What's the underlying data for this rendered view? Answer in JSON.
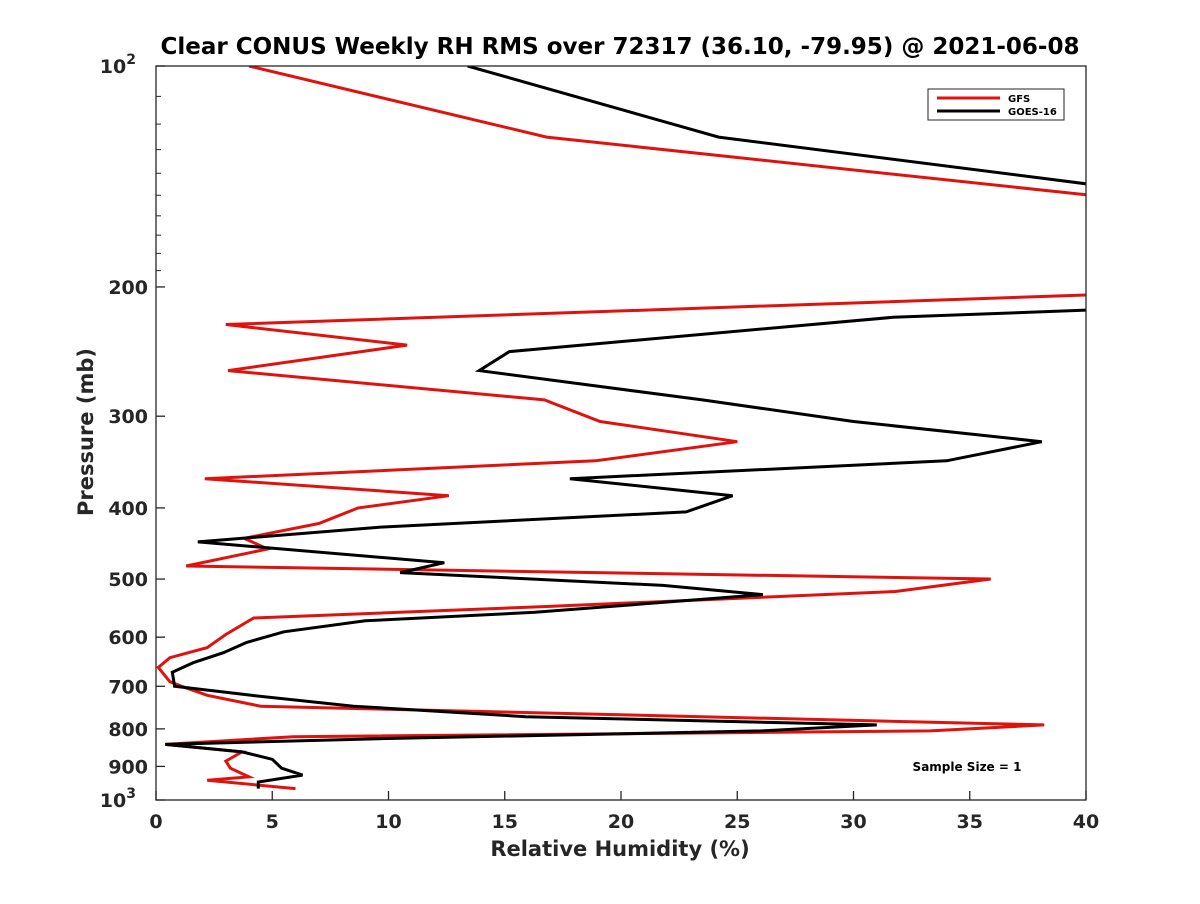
{
  "chart_data": {
    "type": "line",
    "title": "Clear CONUS Weekly RH RMS over 72317 (36.10, -79.95) @ 2021-06-08",
    "xlabel": "Relative Humidity (%)",
    "ylabel": "Pressure (mb)",
    "xlim": [
      0,
      40
    ],
    "ylim": [
      100,
      1000
    ],
    "y_scale": "log",
    "y_reversed": true,
    "x_ticks": [
      0,
      5,
      10,
      15,
      20,
      25,
      30,
      35,
      40
    ],
    "y_ticks": [
      {
        "value": 100,
        "label": "10",
        "exp": "2"
      },
      {
        "value": 200,
        "label": "200"
      },
      {
        "value": 300,
        "label": "300"
      },
      {
        "value": 400,
        "label": "400"
      },
      {
        "value": 500,
        "label": "500"
      },
      {
        "value": 600,
        "label": "600"
      },
      {
        "value": 700,
        "label": "700"
      },
      {
        "value": 800,
        "label": "800"
      },
      {
        "value": 900,
        "label": "900"
      },
      {
        "value": 1000,
        "label": "10",
        "exp": "3"
      }
    ],
    "grid": false,
    "legend_position": "top-right",
    "series": [
      {
        "name": "GFS",
        "color": "#e0120e",
        "points": [
          [
            4.0,
            100
          ],
          [
            16.8,
            125
          ],
          [
            40.2,
            150
          ],
          [
            40.2,
            205
          ],
          [
            3.0,
            225
          ],
          [
            10.8,
            240
          ],
          [
            3.1,
            260
          ],
          [
            16.7,
            285
          ],
          [
            19.1,
            305
          ],
          [
            25.0,
            325
          ],
          [
            18.9,
            345
          ],
          [
            2.1,
            365
          ],
          [
            12.6,
            385
          ],
          [
            8.7,
            400
          ],
          [
            7.0,
            420
          ],
          [
            3.8,
            440
          ],
          [
            4.8,
            455
          ],
          [
            1.3,
            480
          ],
          [
            35.9,
            500
          ],
          [
            31.8,
            520
          ],
          [
            16.8,
            545
          ],
          [
            4.2,
            565
          ],
          [
            3.0,
            595
          ],
          [
            2.2,
            620
          ],
          [
            0.6,
            640
          ],
          [
            0.1,
            660
          ],
          [
            0.6,
            690
          ],
          [
            1.1,
            700
          ],
          [
            2.2,
            720
          ],
          [
            4.5,
            745
          ],
          [
            38.2,
            790
          ],
          [
            33.3,
            805
          ],
          [
            5.9,
            820
          ],
          [
            0.4,
            840
          ],
          [
            3.7,
            860
          ],
          [
            3.0,
            885
          ],
          [
            3.2,
            905
          ],
          [
            4.0,
            930
          ],
          [
            2.2,
            940
          ],
          [
            6.0,
            965
          ]
        ]
      },
      {
        "name": "GOES-16",
        "color": "#000000",
        "points": [
          [
            13.4,
            100
          ],
          [
            24.2,
            125
          ],
          [
            40.2,
            145
          ],
          [
            40.2,
            215
          ],
          [
            31.7,
            220
          ],
          [
            15.2,
            245
          ],
          [
            13.9,
            260
          ],
          [
            23.5,
            285
          ],
          [
            30.0,
            305
          ],
          [
            38.1,
            325
          ],
          [
            34.0,
            345
          ],
          [
            17.8,
            365
          ],
          [
            24.8,
            385
          ],
          [
            22.8,
            405
          ],
          [
            9.6,
            425
          ],
          [
            1.8,
            445
          ],
          [
            12.4,
            475
          ],
          [
            10.5,
            490
          ],
          [
            21.8,
            510
          ],
          [
            26.1,
            525
          ],
          [
            16.3,
            555
          ],
          [
            9.0,
            570
          ],
          [
            5.5,
            590
          ],
          [
            3.9,
            610
          ],
          [
            2.9,
            630
          ],
          [
            1.6,
            650
          ],
          [
            0.7,
            670
          ],
          [
            0.8,
            700
          ],
          [
            4.1,
            720
          ],
          [
            8.5,
            745
          ],
          [
            15.9,
            770
          ],
          [
            31.0,
            790
          ],
          [
            26.0,
            805
          ],
          [
            9.6,
            825
          ],
          [
            0.4,
            840
          ],
          [
            3.7,
            860
          ],
          [
            5.0,
            880
          ],
          [
            5.4,
            905
          ],
          [
            6.3,
            925
          ],
          [
            4.4,
            945
          ],
          [
            4.4,
            965
          ]
        ]
      }
    ],
    "annotation": "Sample Size = 1"
  }
}
